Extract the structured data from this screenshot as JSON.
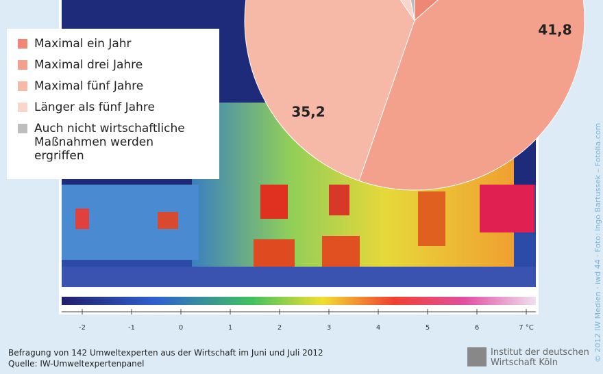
{
  "chart_data": {
    "type": "pie",
    "categories": [
      "Maximal ein Jahr",
      "Maximal drei Jahre",
      "Maximal fünf Jahre",
      "Länger als fünf Jahre",
      "Auch nicht wirtschaftliche Maßnahmen werden ergriffen"
    ],
    "values": [
      13.5,
      41.8,
      35.2,
      6.5,
      3
    ],
    "value_labels": [
      null,
      "41,8",
      "35,2",
      null,
      null
    ],
    "colors": [
      "#ee8773",
      "#f3a18d",
      "#f6b8a7",
      "#fad5c9",
      "#bdbdbd"
    ]
  },
  "photo_scale": [
    "-2",
    "-1",
    "0",
    "1",
    "2",
    "3",
    "4",
    "5",
    "6",
    "7 °C"
  ],
  "footer": {
    "note": "Befragung von 142 Umweltexperten aus der Wirtschaft im Juni und Juli 2012",
    "source": "Quelle: IW-Umweltexpertenpanel"
  },
  "logo": {
    "line1": "Institut der deutschen",
    "line2": "Wirtschaft Köln"
  },
  "credit": "© 2012 IW Medien · iwd 44 · Foto: Ingo Bartussek – Fotolia.com"
}
